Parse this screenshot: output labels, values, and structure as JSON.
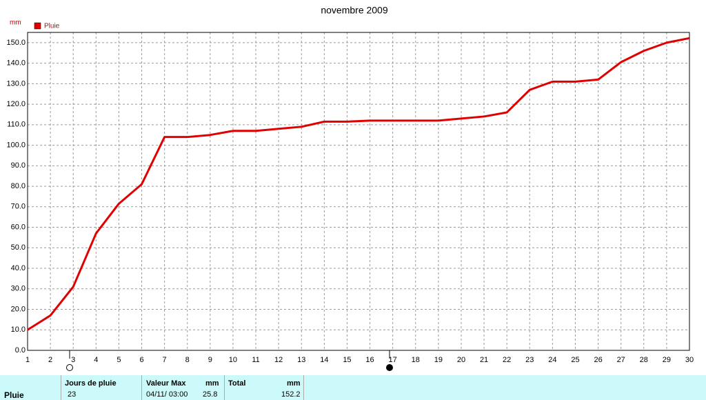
{
  "chart_data": {
    "type": "line",
    "title": "novembre 2009",
    "y_label": "mm",
    "x": [
      1,
      2,
      3,
      4,
      5,
      6,
      7,
      8,
      9,
      10,
      11,
      12,
      13,
      14,
      15,
      16,
      17,
      18,
      19,
      20,
      21,
      22,
      23,
      24,
      25,
      26,
      27,
      28,
      29,
      30
    ],
    "series": [
      {
        "name": "Pluie",
        "color": "#e00000",
        "values": [
          10,
          17,
          31,
          57,
          71.5,
          81,
          104,
          104,
          105,
          107,
          107,
          108,
          109,
          111.5,
          111.5,
          112,
          112,
          112,
          112,
          113,
          114,
          116,
          127,
          131,
          131,
          132,
          140.5,
          146,
          150,
          152.2
        ]
      }
    ],
    "xlim": [
      1,
      30
    ],
    "xticks": [
      1,
      2,
      3,
      4,
      5,
      6,
      7,
      8,
      9,
      10,
      11,
      12,
      13,
      14,
      15,
      16,
      17,
      18,
      19,
      20,
      21,
      22,
      23,
      24,
      25,
      26,
      27,
      28,
      29,
      30
    ],
    "ylim": [
      0,
      155
    ],
    "yticks": [
      {
        "value": 0,
        "label": "0.0"
      },
      {
        "value": 10,
        "label": "10.0"
      },
      {
        "value": 20,
        "label": "20.0"
      },
      {
        "value": 30,
        "label": "30.0"
      },
      {
        "value": 40,
        "label": "40.0"
      },
      {
        "value": 50,
        "label": "50.0"
      },
      {
        "value": 60,
        "label": "60.0"
      },
      {
        "value": 70,
        "label": "70.0"
      },
      {
        "value": 80,
        "label": "80.0"
      },
      {
        "value": 90,
        "label": "90.0"
      },
      {
        "value": 100,
        "label": "100.0"
      },
      {
        "value": 110,
        "label": "110.0"
      },
      {
        "value": 120,
        "label": "120.0"
      },
      {
        "value": 130,
        "label": "130.0"
      },
      {
        "value": 140,
        "label": "140.0"
      },
      {
        "value": 150,
        "label": "150.0"
      }
    ],
    "grid": true
  },
  "table": {
    "headers": [
      "Jours de pluie",
      "Valeur Max",
      "mm",
      "Total",
      "mm"
    ],
    "row": {
      "label": "Pluie",
      "days": "23",
      "max_date": "04/11/ 03:00",
      "max": "25.8",
      "total": "152.2"
    }
  }
}
